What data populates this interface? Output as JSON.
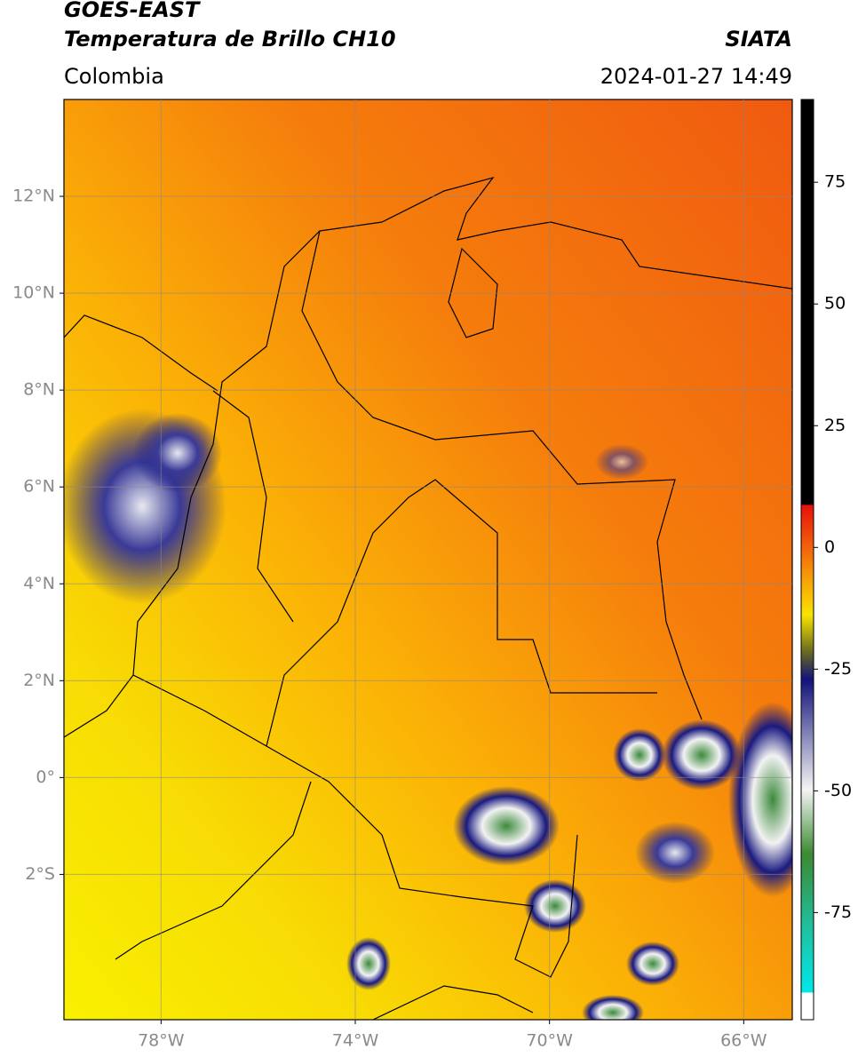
{
  "header": {
    "title": "GOES-EAST",
    "subtitle": "Temperatura de Brillo CH10",
    "source": "SIATA",
    "region": "Colombia",
    "datetime": "2024-01-27 14:49"
  },
  "map": {
    "xlim": [
      -80,
      -65
    ],
    "ylim": [
      -5,
      14
    ],
    "grid": true,
    "xticks": [
      {
        "value": -78,
        "label": "78°W"
      },
      {
        "value": -74,
        "label": "74°W"
      },
      {
        "value": -70,
        "label": "70°W"
      },
      {
        "value": -66,
        "label": "66°W"
      }
    ],
    "yticks": [
      {
        "value": 12,
        "label": "12°N"
      },
      {
        "value": 10,
        "label": "10°N"
      },
      {
        "value": 8,
        "label": "8°N"
      },
      {
        "value": 6,
        "label": "6°N"
      },
      {
        "value": 4,
        "label": "4°N"
      },
      {
        "value": 2,
        "label": "2°N"
      },
      {
        "value": 0,
        "label": "0°"
      },
      {
        "value": -2,
        "label": "2°S"
      }
    ]
  },
  "colorbar": {
    "lim": [
      -97,
      92
    ],
    "ticks": [
      75,
      50,
      25,
      0,
      -25,
      -50,
      -75
    ]
  }
}
